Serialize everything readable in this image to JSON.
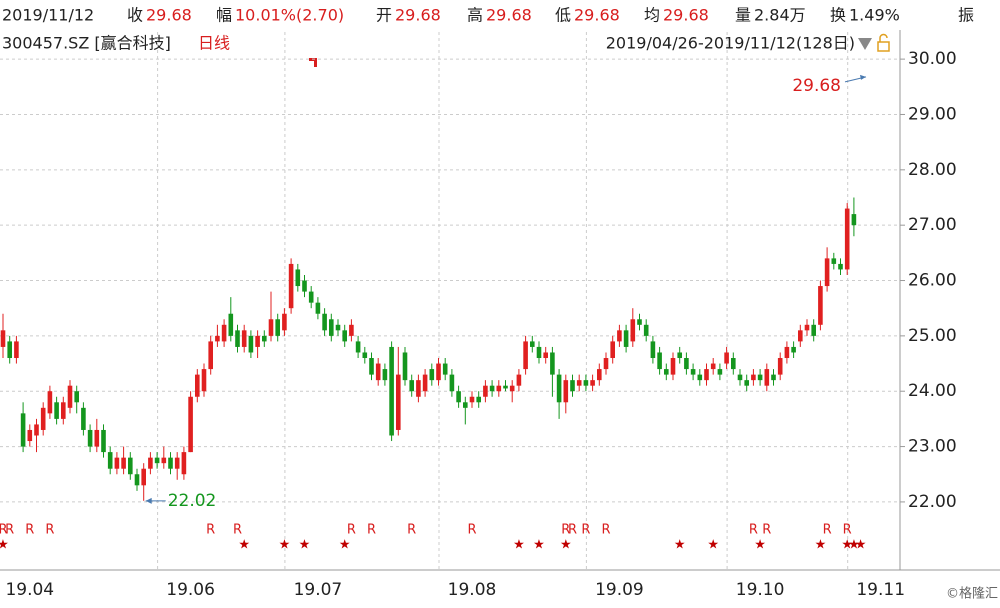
{
  "header": {
    "date": "2019/11/12",
    "close_label": "收",
    "close": "29.68",
    "change_label": "幅",
    "change": "10.01%(2.70)",
    "open_label": "开",
    "open": "29.68",
    "high_label": "高",
    "high": "29.68",
    "low_label": "低",
    "low": "29.68",
    "avg_label": "均",
    "avg": "29.68",
    "volume_label": "量",
    "volume": "2.84万",
    "turnover_label": "换",
    "turnover": "1.49%",
    "amplitude_label": "振",
    "stock": "300457.SZ [赢合科技]",
    "period": "日线",
    "range": "2019/04/26-2019/11/12(128日)",
    "watermark": "©格隆汇"
  },
  "chart_data": {
    "type": "candlestick",
    "up_color": "#e02020",
    "down_color": "#14961e",
    "grid": true,
    "ylim": [
      20.77,
      30.49
    ],
    "yticks": [
      {
        "value": 22,
        "label": "22.00"
      },
      {
        "value": 23,
        "label": "23.00"
      },
      {
        "value": 24,
        "label": "24.00"
      },
      {
        "value": 25,
        "label": "25.00"
      },
      {
        "value": 26,
        "label": "26.00"
      },
      {
        "value": 27,
        "label": "27.00"
      },
      {
        "value": 28,
        "label": "28.00"
      },
      {
        "value": 29,
        "label": "29.00"
      },
      {
        "value": 30,
        "label": "30.00"
      }
    ],
    "last_price": 29.68,
    "low_price": 22.02,
    "categories": [
      null,
      null,
      null,
      null,
      "19.04",
      null,
      null,
      null,
      null,
      null,
      null,
      null,
      null,
      null,
      null,
      null,
      null,
      null,
      null,
      null,
      null,
      null,
      null,
      null,
      null,
      null,
      null,
      null,
      "19.06",
      null,
      null,
      null,
      null,
      null,
      null,
      null,
      null,
      null,
      null,
      null,
      null,
      null,
      null,
      null,
      null,
      null,
      null,
      "19.07",
      null,
      null,
      null,
      null,
      null,
      null,
      null,
      null,
      null,
      null,
      null,
      null,
      null,
      null,
      null,
      null,
      null,
      null,
      null,
      null,
      null,
      null,
      "19.08",
      null,
      null,
      null,
      null,
      null,
      null,
      null,
      null,
      null,
      null,
      null,
      null,
      null,
      null,
      null,
      null,
      null,
      null,
      null,
      null,
      null,
      "19.09",
      null,
      null,
      null,
      null,
      null,
      null,
      null,
      null,
      null,
      null,
      null,
      null,
      null,
      null,
      null,
      null,
      null,
      null,
      null,
      null,
      "19.10",
      null,
      null,
      null,
      null,
      null,
      null,
      null,
      null,
      null,
      null,
      null,
      null,
      null,
      null,
      null,
      null,
      null,
      "19.11"
    ],
    "open": [
      24.8,
      24.9,
      24.6,
      23.6,
      23.1,
      23.2,
      23.3,
      23.6,
      23.8,
      23.5,
      23.7,
      24.0,
      23.7,
      23.3,
      23.0,
      23.3,
      22.9,
      22.6,
      22.6,
      22.8,
      22.5,
      22.3,
      22.6,
      22.8,
      22.7,
      22.8,
      22.6,
      22.5,
      22.9,
      23.9,
      24.0,
      24.4,
      24.9,
      24.9,
      25.4,
      25.1,
      24.8,
      25.0,
      24.8,
      25.0,
      25.0,
      25.3,
      25.1,
      25.5,
      26.2,
      26.0,
      25.8,
      25.6,
      25.4,
      25.3,
      25.2,
      25.1,
      25.0,
      24.9,
      24.7,
      24.6,
      24.2,
      24.4,
      24.8,
      23.3,
      24.7,
      24.2,
      23.9,
      24.0,
      24.4,
      24.2,
      24.5,
      24.3,
      24.0,
      23.8,
      23.8,
      23.9,
      23.9,
      24.1,
      24.0,
      24.1,
      24.0,
      24.1,
      24.4,
      24.9,
      24.8,
      24.6,
      24.7,
      24.3,
      23.8,
      24.2,
      24.1,
      24.2,
      24.1,
      24.2,
      24.4,
      24.6,
      24.9,
      25.1,
      24.9,
      25.3,
      25.2,
      24.9,
      24.7,
      24.4,
      24.3,
      24.7,
      24.6,
      24.4,
      24.3,
      24.2,
      24.4,
      24.4,
      24.5,
      24.6,
      24.3,
      24.2,
      24.2,
      24.3,
      24.1,
      24.3,
      24.3,
      24.6,
      24.8,
      24.9,
      25.1,
      25.2,
      25.2,
      25.9,
      26.4,
      26.3,
      26.2,
      27.2,
      null,
      null,
      null,
      null
    ],
    "high": [
      25.4,
      25.0,
      25.0,
      23.8,
      23.4,
      23.5,
      23.8,
      24.1,
      23.9,
      23.9,
      24.2,
      24.1,
      23.8,
      23.4,
      23.5,
      23.4,
      23.0,
      22.9,
      23.0,
      22.9,
      22.6,
      22.7,
      22.9,
      22.9,
      23.0,
      22.9,
      22.9,
      23.0,
      24.0,
      24.4,
      24.5,
      25.0,
      25.2,
      25.3,
      25.7,
      25.2,
      25.2,
      25.1,
      25.1,
      25.1,
      25.8,
      25.4,
      25.5,
      26.4,
      26.3,
      26.1,
      25.9,
      25.7,
      25.5,
      25.4,
      25.3,
      25.2,
      25.3,
      25.0,
      24.8,
      24.7,
      24.6,
      24.5,
      24.9,
      24.8,
      24.8,
      24.3,
      24.3,
      24.4,
      24.5,
      24.6,
      24.6,
      24.4,
      24.1,
      23.9,
      24.0,
      24.0,
      24.2,
      24.2,
      24.2,
      24.2,
      24.2,
      24.4,
      25.0,
      25.0,
      24.9,
      24.8,
      24.8,
      24.4,
      24.3,
      24.3,
      24.3,
      24.3,
      24.3,
      24.5,
      24.7,
      25.0,
      25.2,
      25.2,
      25.5,
      25.4,
      25.3,
      25.0,
      24.8,
      24.5,
      24.7,
      24.8,
      24.7,
      24.5,
      24.4,
      24.5,
      24.6,
      24.5,
      24.8,
      24.7,
      24.4,
      24.3,
      24.4,
      24.4,
      24.5,
      24.4,
      24.7,
      24.9,
      24.9,
      25.2,
      25.3,
      25.3,
      26.0,
      26.6,
      26.5,
      26.4,
      27.4,
      27.5,
      null,
      null,
      null,
      null
    ],
    "low": [
      24.6,
      24.5,
      24.5,
      22.9,
      23.0,
      22.9,
      23.2,
      23.5,
      23.4,
      23.4,
      23.6,
      23.6,
      23.2,
      22.9,
      22.9,
      22.8,
      22.5,
      22.5,
      22.5,
      22.4,
      22.2,
      22.02,
      22.5,
      22.6,
      22.6,
      22.5,
      22.4,
      22.4,
      22.9,
      23.8,
      23.9,
      24.3,
      24.8,
      24.8,
      24.9,
      24.7,
      24.7,
      24.6,
      24.6,
      24.8,
      24.9,
      24.9,
      25.0,
      25.4,
      25.8,
      25.7,
      25.5,
      25.3,
      25.0,
      24.9,
      25.0,
      24.8,
      24.9,
      24.6,
      24.5,
      24.2,
      24.1,
      24.1,
      23.1,
      23.2,
      24.1,
      23.9,
      23.8,
      23.9,
      24.1,
      24.1,
      24.2,
      23.9,
      23.7,
      23.4,
      23.7,
      23.7,
      23.8,
      23.9,
      23.9,
      24.0,
      23.8,
      24.0,
      24.3,
      24.7,
      24.5,
      24.5,
      23.9,
      23.5,
      23.6,
      23.9,
      24.0,
      24.0,
      24.0,
      24.1,
      24.3,
      24.5,
      24.8,
      24.7,
      24.8,
      25.1,
      24.9,
      24.5,
      24.3,
      24.2,
      24.2,
      24.5,
      24.3,
      24.2,
      24.1,
      24.1,
      24.3,
      24.2,
      24.4,
      24.3,
      24.1,
      24.0,
      24.1,
      24.1,
      24.0,
      24.1,
      24.2,
      24.5,
      24.6,
      24.8,
      25.0,
      24.9,
      25.1,
      25.8,
      26.2,
      26.1,
      26.1,
      26.8,
      null,
      null,
      null,
      null
    ],
    "close": [
      25.1,
      24.6,
      24.9,
      23.0,
      23.3,
      23.4,
      23.7,
      24.0,
      23.5,
      23.8,
      24.1,
      23.8,
      23.3,
      23.0,
      23.3,
      22.9,
      22.6,
      22.8,
      22.8,
      22.5,
      22.3,
      22.6,
      22.8,
      22.7,
      22.8,
      22.6,
      22.8,
      22.9,
      23.9,
      24.3,
      24.4,
      24.9,
      25.0,
      25.2,
      25.0,
      24.8,
      25.1,
      24.7,
      25.0,
      24.9,
      25.3,
      25.0,
      25.4,
      26.3,
      25.9,
      25.8,
      25.6,
      25.4,
      25.1,
      25.0,
      25.1,
      24.9,
      25.2,
      24.7,
      24.6,
      24.3,
      24.5,
      24.2,
      23.2,
      24.3,
      24.2,
      24.0,
      24.2,
      24.3,
      24.2,
      24.5,
      24.3,
      24.0,
      23.8,
      23.7,
      23.9,
      23.8,
      24.1,
      24.0,
      24.1,
      24.05,
      24.1,
      24.3,
      24.9,
      24.8,
      24.6,
      24.7,
      24.3,
      23.8,
      24.2,
      24.0,
      24.2,
      24.1,
      24.2,
      24.4,
      24.6,
      24.9,
      25.1,
      24.8,
      25.3,
      25.2,
      25.0,
      24.6,
      24.4,
      24.3,
      24.6,
      24.6,
      24.4,
      24.3,
      24.2,
      24.4,
      24.5,
      24.3,
      24.7,
      24.4,
      24.2,
      24.1,
      24.3,
      24.2,
      24.4,
      24.2,
      24.6,
      24.8,
      24.7,
      25.1,
      25.2,
      25.0,
      25.9,
      26.4,
      26.3,
      26.2,
      27.3,
      27.0,
      null,
      null,
      null,
      null
    ],
    "r_marks": [
      "R",
      "R",
      null,
      null,
      "R",
      null,
      null,
      "R",
      null,
      null,
      null,
      null,
      null,
      null,
      null,
      null,
      null,
      null,
      null,
      null,
      null,
      null,
      null,
      null,
      null,
      null,
      null,
      null,
      null,
      null,
      null,
      "R",
      null,
      null,
      null,
      "R",
      null,
      null,
      null,
      null,
      null,
      null,
      null,
      null,
      null,
      null,
      null,
      null,
      null,
      null,
      null,
      null,
      "R",
      null,
      null,
      "R",
      null,
      null,
      null,
      null,
      null,
      "R",
      null,
      null,
      null,
      null,
      null,
      null,
      null,
      null,
      "R",
      null,
      null,
      null,
      null,
      null,
      null,
      null,
      null,
      null,
      null,
      null,
      null,
      null,
      "R",
      "R",
      null,
      "R",
      null,
      null,
      "R",
      null,
      null,
      null,
      null,
      null,
      null,
      null,
      null,
      null,
      null,
      null,
      null,
      null,
      null,
      null,
      null,
      null,
      null,
      null,
      null,
      null,
      "R",
      null,
      "R",
      null,
      null,
      null,
      null,
      null,
      null,
      null,
      null,
      "R",
      null,
      null,
      "R",
      null,
      null,
      null,
      null,
      null
    ],
    "star_marks": [
      "★",
      null,
      null,
      null,
      null,
      null,
      null,
      null,
      null,
      null,
      null,
      null,
      null,
      null,
      null,
      null,
      null,
      null,
      null,
      null,
      null,
      null,
      null,
      null,
      null,
      null,
      null,
      null,
      null,
      null,
      null,
      null,
      null,
      null,
      null,
      null,
      "★",
      null,
      null,
      null,
      null,
      null,
      "★",
      null,
      null,
      "★",
      null,
      null,
      null,
      null,
      null,
      "★",
      null,
      null,
      null,
      null,
      null,
      null,
      null,
      null,
      null,
      null,
      null,
      null,
      null,
      null,
      null,
      null,
      null,
      null,
      null,
      null,
      null,
      null,
      null,
      null,
      null,
      "★",
      null,
      null,
      "★",
      null,
      null,
      null,
      "★",
      null,
      null,
      null,
      null,
      null,
      null,
      null,
      null,
      null,
      null,
      null,
      null,
      null,
      null,
      null,
      null,
      "★",
      null,
      null,
      null,
      null,
      "★",
      null,
      null,
      null,
      null,
      null,
      null,
      "★",
      null,
      null,
      null,
      null,
      null,
      null,
      null,
      null,
      "★",
      null,
      null,
      null,
      "★",
      "★",
      "★",
      null,
      null,
      null
    ]
  }
}
